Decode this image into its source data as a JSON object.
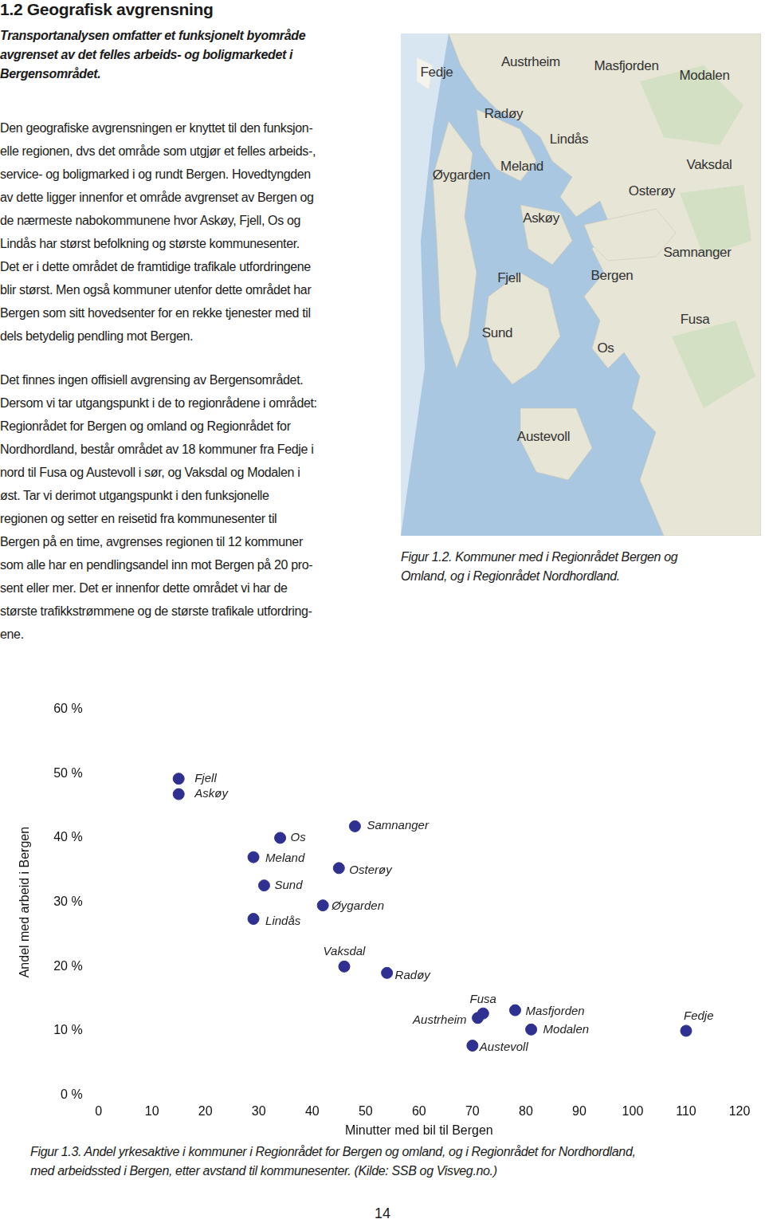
{
  "page": {
    "heading": "1.2 Geografisk avgrensning",
    "intro": [
      "Transportanalysen omfatter et funksjonelt byområde",
      "avgrenset av det felles arbeids- og boligmarkedet i",
      "Bergensområdet."
    ],
    "paragraphs": [
      [
        "Den geografiske avgrensningen er knyttet til den funksjon-",
        "elle regionen, dvs det område som utgjør et felles arbeids-,",
        "service- og boligmarked i og rundt Bergen. Hovedtyngden",
        "av dette ligger innenfor et område avgrenset av Bergen og",
        "de nærmeste nabokommunene hvor Askøy, Fjell, Os og",
        "Lindås har størst befolkning og største kommunesenter.",
        "Det er i dette området de framtidige trafikale utfordringene",
        "blir størst. Men også kommuner utenfor dette området har",
        "Bergen som sitt hovedsenter for en rekke tjenester med til",
        "dels betydelig pendling mot Bergen."
      ],
      [
        "Det finnes ingen offisiell avgrensing av Bergensområdet.",
        "Dersom vi tar utgangspunkt i de to regionrådene i området:",
        "Regionrådet for Bergen og omland og Regionrådet for",
        "Nordhordland, består området av 18 kommuner fra Fedje i",
        "nord til Fusa og Austevoll i sør, og Vaksdal og Modalen i",
        "øst. Tar vi derimot utgangspunkt i den funksjonelle",
        "regionen og setter en reisetid fra kommunesenter til",
        "Bergen på en time, avgrenses regionen til 12 kommuner",
        "som alle har en pendlingsandel inn mot Bergen på 20 pro-",
        "sent eller mer. Det er innenfor dette området vi har de",
        "største trafikkstrømmene og de største trafikale utfordring-",
        "ene."
      ]
    ],
    "map_labels": [
      "Fedje",
      "Austrheim",
      "Masfjorden",
      "Modalen",
      "Radøy",
      "Lindås",
      "Øygarden",
      "Meland",
      "Vaksdal",
      "Osterøy",
      "Askøy",
      "Samnanger",
      "Fjell",
      "Bergen",
      "Fusa",
      "Sund",
      "Os",
      "Austevoll"
    ],
    "figure_1_2_caption": [
      "Figur 1.2. Kommuner med i Regionrådet Bergen og",
      "Omland, og i Regionrådet Nordhordland."
    ],
    "figure_1_3_caption": [
      "Figur 1.3. Andel yrkesaktive i kommuner i Regionrådet for Bergen og omland, og i Regionrådet for Nordhordland,",
      "med arbeidssted i Bergen, etter avstand til kommunesenter. (Kilde: SSB og Visveg.no.)"
    ],
    "page_number": "14"
  },
  "chart_data": {
    "type": "scatter",
    "x_label": "Minutter med bil til Bergen",
    "y_label": "Andel med arbeid i Bergen",
    "labels": [
      "Fjell",
      "Askøy",
      "Os",
      "Meland",
      "Sund",
      "Lindås",
      "Samnanger",
      "Osterøy",
      "Øygarden",
      "Vaksdal",
      "Radøy",
      "Fusa",
      "Austrheim",
      "Masfjorden",
      "Modalen",
      "Austevoll",
      "Fedje"
    ],
    "x": [
      15,
      15,
      34,
      29,
      31,
      29,
      48,
      45,
      42,
      46,
      54,
      72,
      71,
      78,
      81,
      70,
      110
    ],
    "values": [
      49.2,
      46.8,
      40,
      37,
      32.6,
      27.4,
      41.8,
      35.3,
      29.5,
      20,
      19,
      12.7,
      12,
      13.2,
      10.2,
      7.7,
      10
    ],
    "color": "#2e3190",
    "marker": "circle",
    "xlim": [
      0,
      120
    ],
    "xticks": [
      0,
      10,
      20,
      30,
      40,
      50,
      60,
      70,
      80,
      90,
      100,
      110,
      120
    ],
    "ylim": [
      0,
      60
    ],
    "yticks": [
      {
        "value": 0,
        "label": "0 %"
      },
      {
        "value": 10,
        "label": "10 %"
      },
      {
        "value": 20,
        "label": "20 %"
      },
      {
        "value": 30,
        "label": "30 %"
      },
      {
        "value": 40,
        "label": "40 %"
      },
      {
        "value": 50,
        "label": "50 %"
      },
      {
        "value": 60,
        "label": "60 %"
      }
    ],
    "grid": false
  }
}
